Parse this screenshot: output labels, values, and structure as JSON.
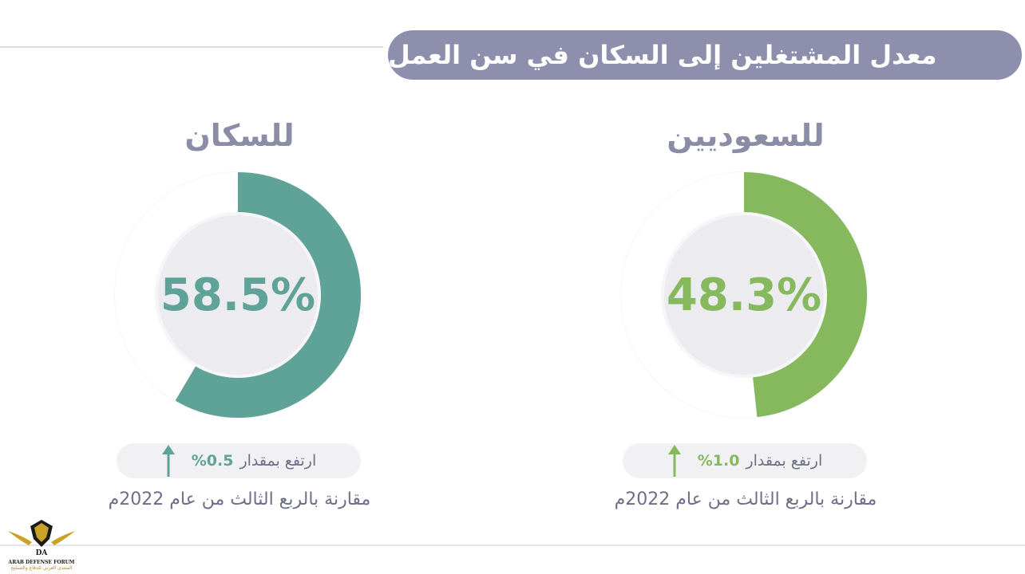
{
  "title": "معدل المشتغلين إلى السكان في سن العمل",
  "colors": {
    "title_bg": "#8e8fad",
    "teal": "#5fa398",
    "green": "#86b95e",
    "track": "#f3f3f6",
    "inner": "#ececf0",
    "text_gray": "#6d6e88"
  },
  "cards": [
    {
      "label": "للسكان",
      "value_text": "58.5%",
      "change_prefix": "ارتفع بمقدار",
      "change_value": "%0.5",
      "compare_text": "مقارنة بالربع الثالث من عام 2022م",
      "arrow_icon": "arrow-up-icon"
    },
    {
      "label": "للسعوديين",
      "value_text": "48.3%",
      "change_prefix": "ارتفع بمقدار",
      "change_value": "%1.0",
      "compare_text": "مقارنة بالربع الثالث من عام 2022م",
      "arrow_icon": "arrow-up-icon"
    }
  ],
  "chart_data": [
    {
      "type": "pie",
      "title": "للسكان",
      "values": [
        58.5,
        41.5
      ],
      "unit": "%",
      "color": "#5fa398"
    },
    {
      "type": "pie",
      "title": "للسعوديين",
      "values": [
        48.3,
        51.7
      ],
      "unit": "%",
      "color": "#86b95e"
    }
  ],
  "watermark": {
    "line1": "ARAB DEFENSE FORUM",
    "line2": "المنتدى العربي للدفاع والتسليح",
    "logo_text": "DA"
  }
}
